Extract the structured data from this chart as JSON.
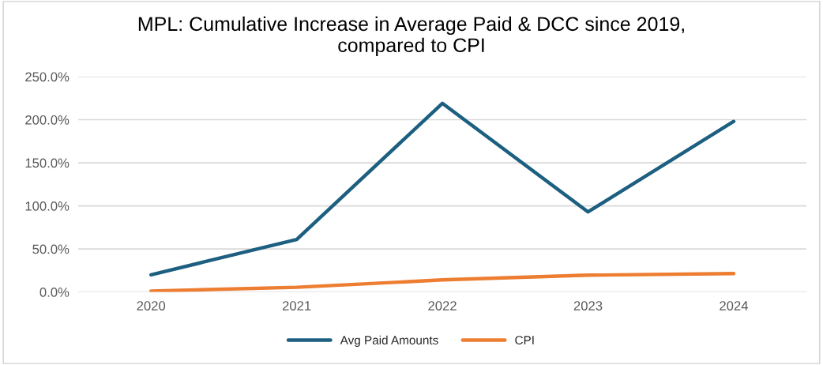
{
  "chart_data": {
    "type": "line",
    "title": "MPL: Cumulative Increase in Average Paid & DCC since 2019,\ncompared to CPI",
    "categories": [
      "2020",
      "2021",
      "2022",
      "2023",
      "2024"
    ],
    "series": [
      {
        "name": "Avg Paid Amounts",
        "color": "#1d5f80",
        "values": [
          20,
          61,
          219,
          93,
          198
        ]
      },
      {
        "name": "CPI",
        "color": "#ed7d31",
        "values": [
          1,
          5.5,
          14,
          19.5,
          21.5
        ]
      }
    ],
    "ylim": [
      0,
      250
    ],
    "yticks": [
      {
        "value": 0,
        "label": "0.0%"
      },
      {
        "value": 50,
        "label": "50.0%"
      },
      {
        "value": 100,
        "label": "100.0%"
      },
      {
        "value": 150,
        "label": "150.0%"
      },
      {
        "value": 200,
        "label": "200.0%"
      },
      {
        "value": 250,
        "label": "250.0%"
      }
    ],
    "grid": "y",
    "legend": "bottom",
    "marker": "none",
    "line_style": "solid"
  }
}
